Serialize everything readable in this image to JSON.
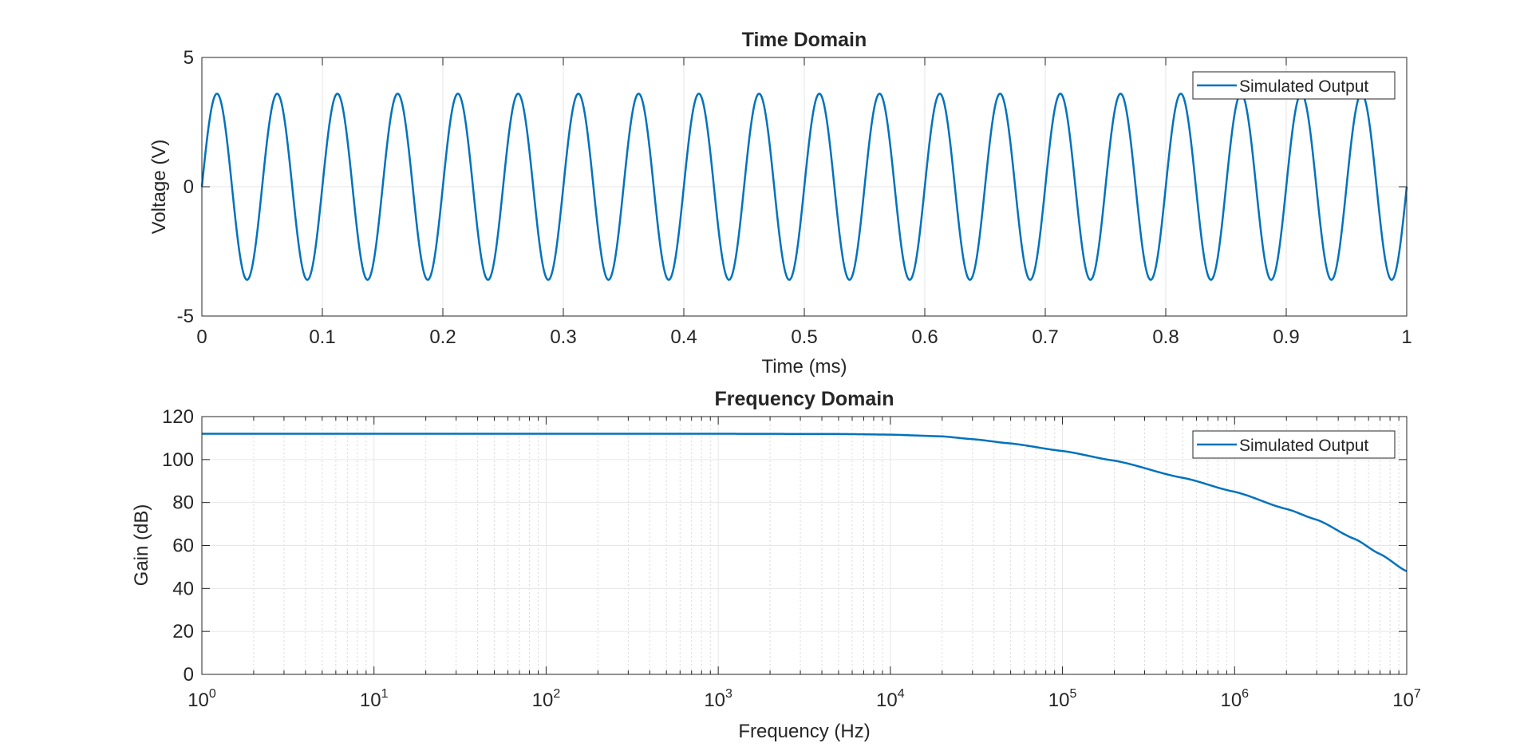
{
  "chart_data": [
    {
      "type": "line",
      "title": "Time Domain",
      "xlabel": "Time (ms)",
      "ylabel": "Voltage (V)",
      "xlim": [
        0,
        1
      ],
      "ylim": [
        -5,
        5
      ],
      "x_ticks": [
        "0",
        "0.1",
        "0.2",
        "0.3",
        "0.4",
        "0.5",
        "0.6",
        "0.7",
        "0.8",
        "0.9",
        "1"
      ],
      "y_ticks": [
        "-5",
        "0",
        "5"
      ],
      "grid": true,
      "legend_position": "top-right",
      "series": [
        {
          "name": "Simulated Output",
          "color": "#0072BD",
          "kind": "sinusoid",
          "amplitude": 3.6,
          "frequency_khz": 20,
          "phase": 0
        }
      ]
    },
    {
      "type": "line",
      "title": "Frequency Domain",
      "xlabel": "Frequency (Hz)",
      "ylabel": "Gain (dB)",
      "xscale": "log",
      "xlim": [
        1,
        10000000
      ],
      "ylim": [
        0,
        120
      ],
      "x_ticks": [
        {
          "base": "10",
          "exp": "0"
        },
        {
          "base": "10",
          "exp": "1"
        },
        {
          "base": "10",
          "exp": "2"
        },
        {
          "base": "10",
          "exp": "3"
        },
        {
          "base": "10",
          "exp": "4"
        },
        {
          "base": "10",
          "exp": "5"
        },
        {
          "base": "10",
          "exp": "6"
        },
        {
          "base": "10",
          "exp": "7"
        }
      ],
      "y_ticks": [
        "0",
        "20",
        "40",
        "60",
        "80",
        "100",
        "120"
      ],
      "grid": true,
      "legend_position": "top-right",
      "series": [
        {
          "name": "Simulated Output",
          "color": "#0072BD",
          "x": [
            1,
            10,
            100,
            1000,
            5000,
            10000,
            20000,
            30000,
            50000,
            100000,
            200000,
            500000,
            1000000,
            2000000,
            3000000,
            5000000,
            7000000,
            10000000
          ],
          "y": [
            112,
            112,
            112,
            112,
            111.9,
            111.6,
            110.8,
            109.5,
            107.5,
            104,
            99.5,
            91.5,
            85,
            77,
            72,
            63,
            56,
            48
          ]
        }
      ]
    }
  ]
}
